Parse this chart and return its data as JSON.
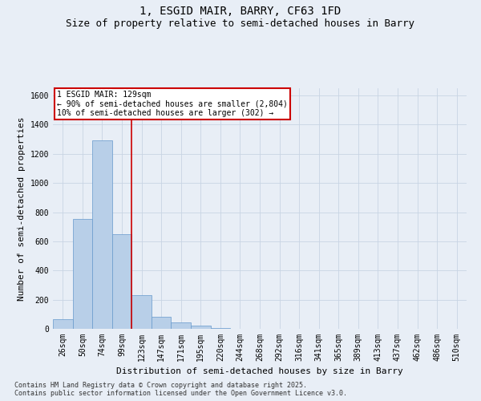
{
  "title_line1": "1, ESGID MAIR, BARRY, CF63 1FD",
  "title_line2": "Size of property relative to semi-detached houses in Barry",
  "xlabel": "Distribution of semi-detached houses by size in Barry",
  "ylabel": "Number of semi-detached properties",
  "categories": [
    "26sqm",
    "50sqm",
    "74sqm",
    "99sqm",
    "123sqm",
    "147sqm",
    "171sqm",
    "195sqm",
    "220sqm",
    "244sqm",
    "268sqm",
    "292sqm",
    "316sqm",
    "341sqm",
    "365sqm",
    "389sqm",
    "413sqm",
    "437sqm",
    "462sqm",
    "486sqm",
    "510sqm"
  ],
  "values": [
    65,
    755,
    1290,
    650,
    230,
    85,
    45,
    20,
    8,
    2,
    0,
    0,
    0,
    0,
    0,
    0,
    0,
    0,
    0,
    0,
    0
  ],
  "bar_color": "#b8cfe8",
  "bar_edge_color": "#6699cc",
  "grid_color": "#c8d4e4",
  "bg_color": "#e8eef6",
  "annotation_text": "1 ESGID MAIR: 129sqm\n← 90% of semi-detached houses are smaller (2,804)\n10% of semi-detached houses are larger (302) →",
  "vline_color": "#cc0000",
  "annotation_box_edge": "#cc0000",
  "ylim": [
    0,
    1650
  ],
  "yticks": [
    0,
    200,
    400,
    600,
    800,
    1000,
    1200,
    1400,
    1600
  ],
  "footnote": "Contains HM Land Registry data © Crown copyright and database right 2025.\nContains public sector information licensed under the Open Government Licence v3.0.",
  "title_fontsize": 10,
  "subtitle_fontsize": 9,
  "label_fontsize": 8,
  "tick_fontsize": 7,
  "footnote_fontsize": 6
}
